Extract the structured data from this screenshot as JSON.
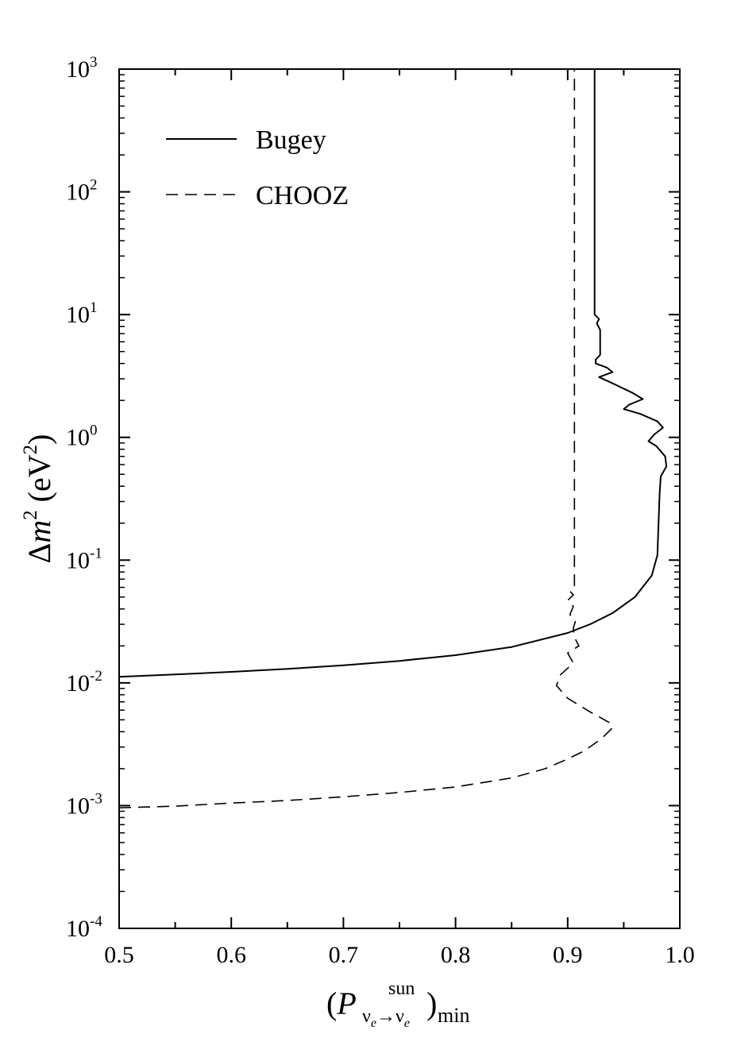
{
  "chart_data": {
    "type": "line",
    "title": "",
    "xlabel": {
      "open": "(",
      "symbol": "P",
      "sub_nu_a": "ν",
      "sub_e_a": "e",
      "arrow": "→",
      "sub_nu_b": "ν",
      "sub_e_b": "e",
      "sup": "sun",
      "close": ")",
      "tail": "min"
    },
    "ylabel": {
      "delta": "Δ",
      "m": "m",
      "sup2": "2",
      "unit_open": " (eV",
      "unit_sup": "2",
      "unit_close": ")"
    },
    "xlim": [
      0.5,
      1.0
    ],
    "ylim": [
      0.0001,
      1000
    ],
    "yscale": "log",
    "grid": false,
    "legend_position": "top-left",
    "x_ticks": [
      "0.5",
      "0.6",
      "0.7",
      "0.8",
      "0.9",
      "1.0"
    ],
    "y_ticks": [
      {
        "base": "10",
        "exp": "-4"
      },
      {
        "base": "10",
        "exp": "-3"
      },
      {
        "base": "10",
        "exp": "-2"
      },
      {
        "base": "10",
        "exp": "-1"
      },
      {
        "base": "10",
        "exp": "0"
      },
      {
        "base": "10",
        "exp": "1"
      },
      {
        "base": "10",
        "exp": "2"
      },
      {
        "base": "10",
        "exp": "3"
      }
    ],
    "series": [
      {
        "name": "Bugey",
        "style": "solid",
        "color": "#000000",
        "points": [
          [
            0.5,
            0.0112
          ],
          [
            0.55,
            0.0117
          ],
          [
            0.6,
            0.0123
          ],
          [
            0.65,
            0.013
          ],
          [
            0.7,
            0.0139
          ],
          [
            0.75,
            0.0151
          ],
          [
            0.8,
            0.0168
          ],
          [
            0.85,
            0.0196
          ],
          [
            0.9,
            0.0255
          ],
          [
            0.92,
            0.03
          ],
          [
            0.94,
            0.037
          ],
          [
            0.96,
            0.05
          ],
          [
            0.975,
            0.075
          ],
          [
            0.98,
            0.11
          ],
          [
            0.981,
            0.2
          ],
          [
            0.982,
            0.35
          ],
          [
            0.983,
            0.48
          ],
          [
            0.988,
            0.58
          ],
          [
            0.987,
            0.7
          ],
          [
            0.979,
            0.85
          ],
          [
            0.972,
            0.93
          ],
          [
            0.977,
            1.05
          ],
          [
            0.985,
            1.2
          ],
          [
            0.98,
            1.35
          ],
          [
            0.965,
            1.55
          ],
          [
            0.95,
            1.7
          ],
          [
            0.955,
            1.85
          ],
          [
            0.967,
            2.05
          ],
          [
            0.958,
            2.3
          ],
          [
            0.942,
            2.7
          ],
          [
            0.928,
            3.1
          ],
          [
            0.94,
            3.4
          ],
          [
            0.935,
            3.7
          ],
          [
            0.925,
            4.0
          ],
          [
            0.925,
            4.3
          ],
          [
            0.929,
            4.7
          ],
          [
            0.929,
            7.5
          ],
          [
            0.926,
            8.5
          ],
          [
            0.928,
            9.2
          ],
          [
            0.924,
            10.0
          ],
          [
            0.924,
            30
          ],
          [
            0.924,
            1000
          ]
        ]
      },
      {
        "name": "CHOOZ",
        "style": "dashed",
        "color": "#000000",
        "points": [
          [
            0.5,
            0.00096
          ],
          [
            0.55,
            0.00099
          ],
          [
            0.6,
            0.00105
          ],
          [
            0.65,
            0.0011
          ],
          [
            0.7,
            0.00118
          ],
          [
            0.75,
            0.00128
          ],
          [
            0.8,
            0.00142
          ],
          [
            0.85,
            0.00168
          ],
          [
            0.88,
            0.002
          ],
          [
            0.9,
            0.0024
          ],
          [
            0.915,
            0.0028
          ],
          [
            0.93,
            0.0035
          ],
          [
            0.94,
            0.0043
          ],
          [
            0.938,
            0.0047
          ],
          [
            0.92,
            0.0058
          ],
          [
            0.9,
            0.0075
          ],
          [
            0.89,
            0.0095
          ],
          [
            0.893,
            0.0115
          ],
          [
            0.905,
            0.0145
          ],
          [
            0.9,
            0.0175
          ],
          [
            0.91,
            0.02
          ],
          [
            0.906,
            0.0235
          ],
          [
            0.905,
            0.028
          ],
          [
            0.907,
            0.032
          ],
          [
            0.902,
            0.036
          ],
          [
            0.905,
            0.042
          ],
          [
            0.9,
            0.047
          ],
          [
            0.905,
            0.052
          ],
          [
            0.902,
            0.056
          ],
          [
            0.906,
            0.062
          ],
          [
            0.906,
            0.07
          ],
          [
            0.906,
            0.2
          ],
          [
            0.906,
            1.0
          ],
          [
            0.906,
            10
          ],
          [
            0.906,
            100
          ],
          [
            0.906,
            1000
          ]
        ]
      }
    ]
  }
}
